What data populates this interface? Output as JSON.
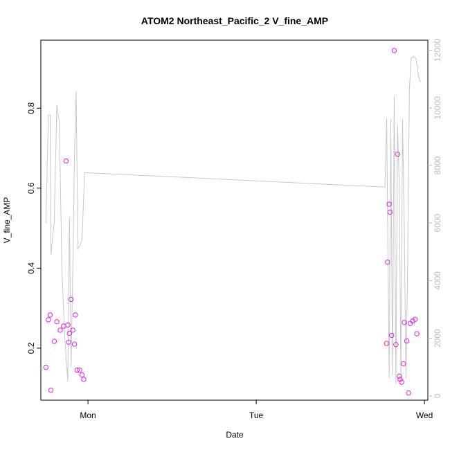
{
  "chart_data": {
    "type": "scatter",
    "title": "ATOM2 Northeast_Pacific_2 V_fine_AMP",
    "xlabel": "Date",
    "ylabel": "V_fine_AMP",
    "x_ticks": [
      "Mon",
      "Tue",
      "Wed"
    ],
    "y_ticks": [
      "0.2",
      "0.4",
      "0.6",
      "0.8"
    ],
    "y2_ticks": [
      "0",
      "2000",
      "4000",
      "6000",
      "8000",
      "10000",
      "12000"
    ],
    "xlim_days": [
      -0.28,
      2.02
    ],
    "ylim": [
      0.07,
      0.97
    ],
    "y2lim": [
      -150,
      12350
    ],
    "colors": {
      "points": "#e51ee5",
      "line": "#c8c8c8",
      "right_axis": "#bdbdbd"
    },
    "series": [
      {
        "type": "scatter",
        "x_days": [
          -0.25,
          -0.235,
          -0.225,
          -0.22,
          -0.2,
          -0.185,
          -0.165,
          -0.145,
          -0.13,
          -0.12,
          -0.115,
          -0.11,
          -0.1,
          -0.09,
          -0.08,
          -0.075,
          -0.065,
          -0.05,
          -0.035,
          -0.025,
          1.775,
          1.78,
          1.79,
          1.795,
          1.805,
          1.82,
          1.83,
          1.84,
          1.85,
          1.855,
          1.865,
          1.875,
          1.88,
          1.895,
          1.905,
          1.915,
          1.93,
          1.945,
          1.955
        ],
        "y": [
          0.152,
          0.271,
          0.283,
          0.095,
          0.217,
          0.266,
          0.245,
          0.255,
          0.668,
          0.258,
          0.215,
          0.237,
          0.322,
          0.245,
          0.21,
          0.283,
          0.145,
          0.145,
          0.133,
          0.122,
          0.212,
          0.415,
          0.56,
          0.54,
          0.232,
          0.944,
          0.209,
          0.685,
          0.13,
          0.122,
          0.115,
          0.161,
          0.264,
          0.218,
          0.088,
          0.262,
          0.268,
          0.272,
          0.236
        ]
      },
      {
        "type": "line",
        "axis": "right",
        "x_days": [
          -0.25,
          -0.235,
          -0.225,
          -0.22,
          -0.2,
          -0.185,
          -0.17,
          -0.155,
          -0.14,
          -0.13,
          -0.12,
          -0.11,
          -0.1,
          -0.09,
          -0.08,
          -0.07,
          -0.06,
          -0.05,
          -0.035,
          -0.02,
          -0.015,
          1.765,
          1.775,
          1.79,
          1.8,
          1.81,
          1.82,
          1.83,
          1.84,
          1.85,
          1.86,
          1.87,
          1.88,
          1.89,
          1.9,
          1.91,
          1.92,
          1.935,
          1.95,
          1.965,
          1.975
        ],
        "y": [
          6000,
          9750,
          9750,
          4900,
          6050,
          10100,
          9500,
          4400,
          2300,
          1300,
          500,
          6200,
          1000,
          4400,
          8400,
          10600,
          5100,
          5200,
          5400,
          7750,
          7750,
          7250,
          9650,
          600,
          9600,
          700,
          10400,
          400,
          9400,
          7300,
          600,
          9600,
          5800,
          600,
          4500,
          10600,
          11700,
          11800,
          11700,
          11100,
          10900
        ]
      }
    ]
  }
}
